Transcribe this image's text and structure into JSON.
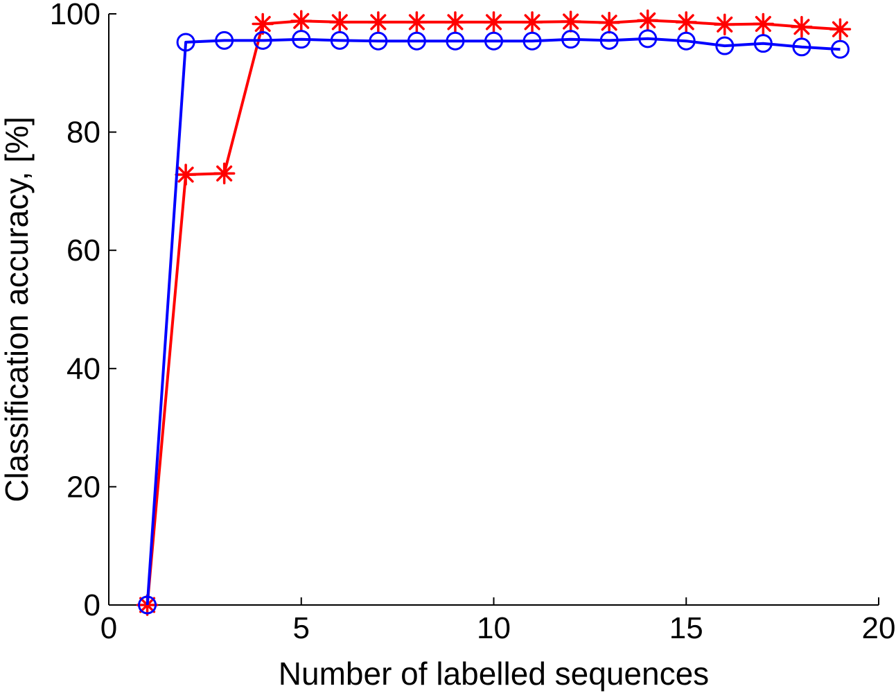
{
  "chart_data": {
    "type": "line",
    "title": "",
    "xlabel": "Number of labelled sequences",
    "ylabel": "Classification accuracy, [%]",
    "xlim": [
      0,
      20
    ],
    "ylim": [
      0,
      100
    ],
    "xticks": [
      0,
      5,
      10,
      15,
      20
    ],
    "yticks": [
      0,
      20,
      40,
      60,
      80,
      100
    ],
    "grid": false,
    "legend": "none",
    "series": [
      {
        "color": "#ff0000",
        "marker": "asterisk",
        "x": [
          1,
          2,
          3,
          4,
          5,
          6,
          7,
          8,
          9,
          10,
          11,
          12,
          13,
          14,
          15,
          16,
          17,
          18,
          19
        ],
        "values": [
          0,
          72.8,
          73,
          98.3,
          98.8,
          98.6,
          98.6,
          98.6,
          98.6,
          98.6,
          98.6,
          98.7,
          98.5,
          98.9,
          98.6,
          98.2,
          98.3,
          97.8,
          97.4
        ]
      },
      {
        "color": "#0000ff",
        "marker": "circle",
        "x": [
          1,
          2,
          3,
          4,
          5,
          6,
          7,
          8,
          9,
          10,
          11,
          12,
          13,
          14,
          15,
          16,
          17,
          18,
          19
        ],
        "values": [
          0,
          95.2,
          95.5,
          95.5,
          95.7,
          95.5,
          95.4,
          95.4,
          95.4,
          95.4,
          95.4,
          95.7,
          95.5,
          95.8,
          95.4,
          94.6,
          95.0,
          94.4,
          94.0
        ]
      }
    ]
  }
}
